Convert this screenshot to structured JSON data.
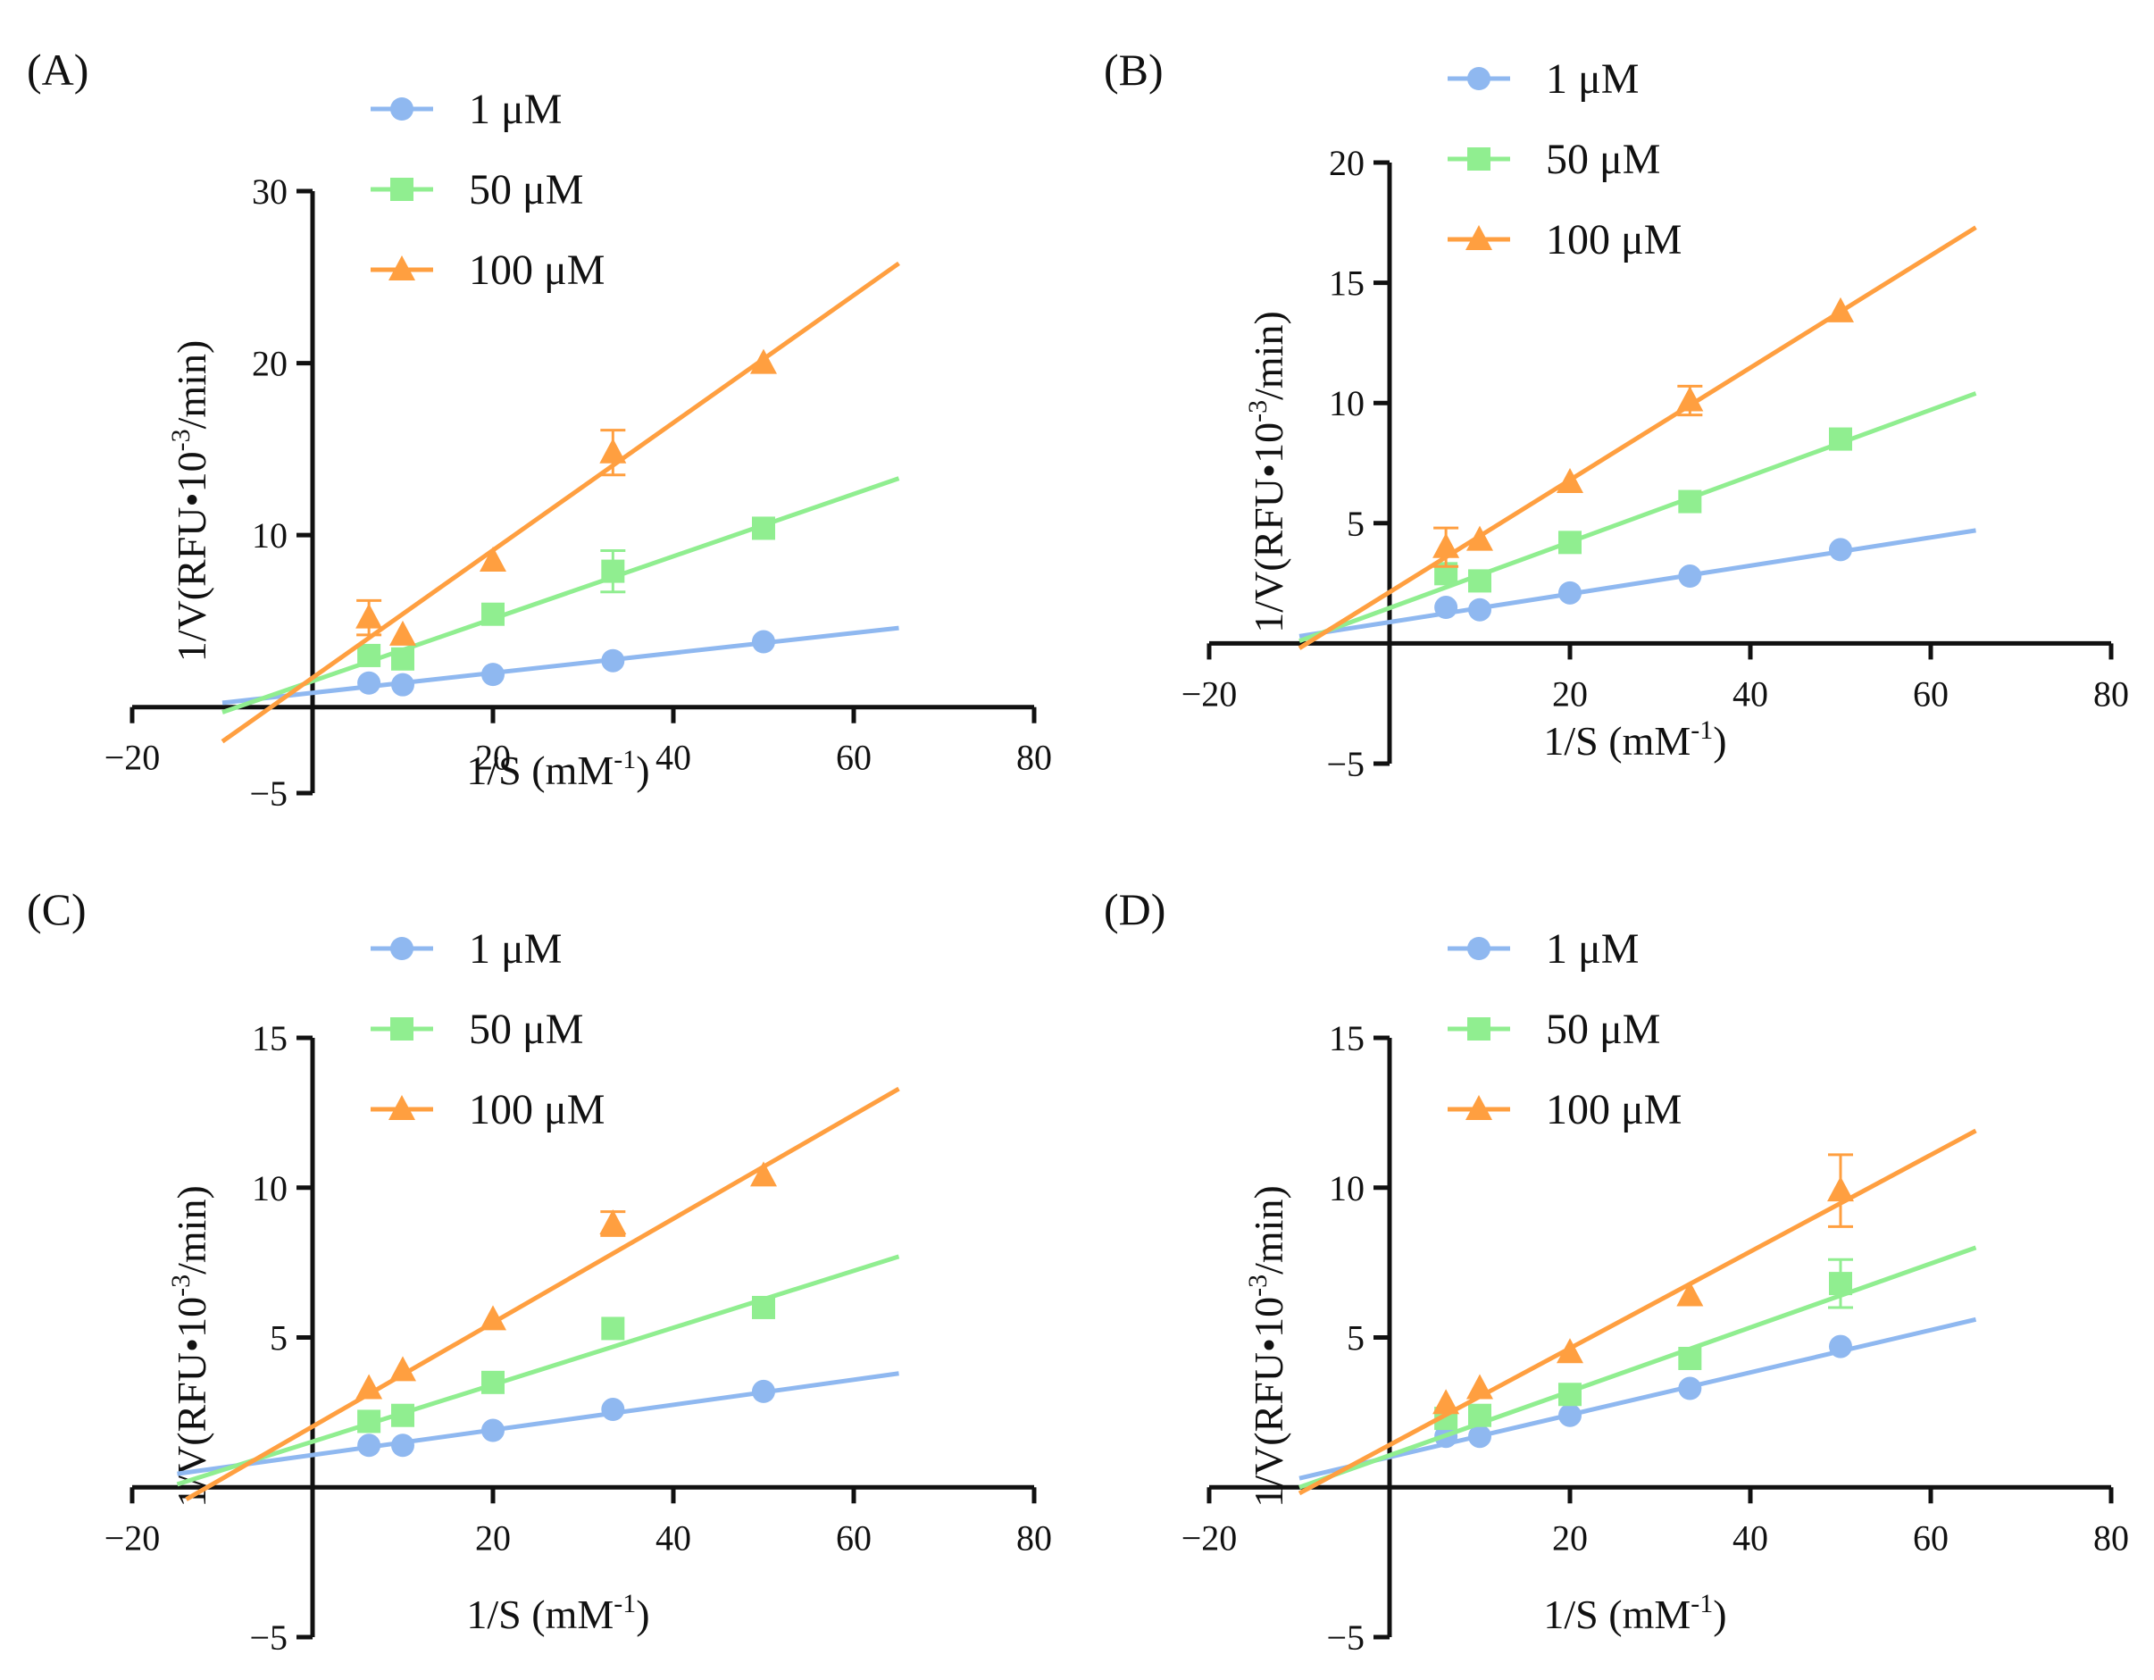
{
  "chart_data": [
    {
      "type": "line",
      "panel_label": "(A)",
      "xlabel": "1/S (mM",
      "xlabel_sup": "-1",
      "xlabel_end": ")",
      "ylabel": "1/V(RFU•10",
      "ylabel_sup": "-3",
      "ylabel_end": "/min)",
      "xlim": [
        -20,
        80
      ],
      "ylim": [
        -5,
        30
      ],
      "xticks": [
        -20,
        20,
        40,
        60,
        80
      ],
      "yticks": [
        -5,
        10,
        20,
        30
      ],
      "legend_position": "top-left",
      "series": [
        {
          "name": "1 μM",
          "color": "#8fb8f0",
          "marker": "circle",
          "points": [
            [
              6.25,
              1.4
            ],
            [
              10,
              1.3
            ],
            [
              20,
              1.9
            ],
            [
              33.3,
              2.7
            ],
            [
              50,
              3.8
            ]
          ],
          "errors": [
            0,
            0,
            0,
            0,
            0
          ],
          "fit": {
            "x": [
              -10,
              65
            ],
            "y": [
              0.25,
              4.6
            ]
          }
        },
        {
          "name": "50  μM",
          "color": "#90ee90",
          "marker": "square",
          "points": [
            [
              6.25,
              3.0
            ],
            [
              10,
              2.8
            ],
            [
              20,
              5.4
            ],
            [
              33.3,
              7.9
            ],
            [
              50,
              10.4
            ]
          ],
          "errors": [
            0,
            0,
            0,
            1.2,
            0
          ],
          "fit": {
            "x": [
              -10,
              65
            ],
            "y": [
              -0.3,
              13.3
            ]
          }
        },
        {
          "name": "100  μM",
          "color": "#ff9f40",
          "marker": "triangle",
          "points": [
            [
              6.25,
              5.2
            ],
            [
              10,
              4.2
            ],
            [
              20,
              8.5
            ],
            [
              33.3,
              14.8
            ],
            [
              50,
              20.0
            ]
          ],
          "errors": [
            1.0,
            0,
            0,
            1.3,
            0
          ],
          "fit": {
            "x": [
              -10,
              65
            ],
            "y": [
              -2.0,
              25.8
            ]
          }
        }
      ]
    },
    {
      "type": "line",
      "panel_label": "(B)",
      "xlabel": "1/S (mM",
      "xlabel_sup": "-1",
      "xlabel_end": ")",
      "ylabel": "1/V(RFU•10",
      "ylabel_sup": "-3",
      "ylabel_end": "/min)",
      "xlim": [
        -20,
        80
      ],
      "ylim": [
        -5,
        20
      ],
      "xticks": [
        -20,
        20,
        40,
        60,
        80
      ],
      "yticks": [
        -5,
        5,
        10,
        15,
        20
      ],
      "legend_position": "top-left",
      "series": [
        {
          "name": "1 μM",
          "color": "#8fb8f0",
          "marker": "circle",
          "points": [
            [
              6.25,
              1.5
            ],
            [
              10,
              1.4
            ],
            [
              20,
              2.1
            ],
            [
              33.3,
              2.8
            ],
            [
              50,
              3.9
            ]
          ],
          "errors": [
            0,
            0,
            0,
            0,
            0
          ],
          "fit": {
            "x": [
              -10,
              65
            ],
            "y": [
              0.3,
              4.7
            ]
          }
        },
        {
          "name": "50  μM",
          "color": "#90ee90",
          "marker": "square",
          "points": [
            [
              6.25,
              2.9
            ],
            [
              10,
              2.6
            ],
            [
              20,
              4.2
            ],
            [
              33.3,
              5.9
            ],
            [
              50,
              8.5
            ]
          ],
          "errors": [
            0,
            0,
            0,
            0,
            0
          ],
          "fit": {
            "x": [
              -10,
              65
            ],
            "y": [
              0.1,
              10.4
            ]
          }
        },
        {
          "name": "100  μM",
          "color": "#ff9f40",
          "marker": "triangle",
          "points": [
            [
              6.25,
              4.0
            ],
            [
              10,
              4.3
            ],
            [
              20,
              6.7
            ],
            [
              33.3,
              10.1
            ],
            [
              50,
              13.8
            ]
          ],
          "errors": [
            0.8,
            0,
            0,
            0.6,
            0
          ],
          "fit": {
            "x": [
              -10,
              65
            ],
            "y": [
              -0.2,
              17.3
            ]
          }
        }
      ]
    },
    {
      "type": "line",
      "panel_label": "(C)",
      "xlabel": "1/S (mM",
      "xlabel_sup": "-1",
      "xlabel_end": ")",
      "ylabel": "1/V(RFU•10",
      "ylabel_sup": "-3",
      "ylabel_end": "/min)",
      "xlim": [
        -20,
        80
      ],
      "ylim": [
        -5,
        15
      ],
      "xticks": [
        -20,
        20,
        40,
        60,
        80
      ],
      "yticks": [
        -5,
        5,
        10,
        15
      ],
      "legend_position": "top-left",
      "series": [
        {
          "name": "1 μM",
          "color": "#8fb8f0",
          "marker": "circle",
          "points": [
            [
              6.25,
              1.4
            ],
            [
              10,
              1.4
            ],
            [
              20,
              1.9
            ],
            [
              33.3,
              2.6
            ],
            [
              50,
              3.2
            ]
          ],
          "errors": [
            0,
            0,
            0,
            0,
            0
          ],
          "fit": {
            "x": [
              -15,
              65
            ],
            "y": [
              0.45,
              3.8
            ]
          }
        },
        {
          "name": "50  μM",
          "color": "#90ee90",
          "marker": "square",
          "points": [
            [
              6.25,
              2.2
            ],
            [
              10,
              2.4
            ],
            [
              20,
              3.5
            ],
            [
              33.3,
              5.3
            ],
            [
              50,
              6.0
            ]
          ],
          "errors": [
            0,
            0,
            0,
            0,
            0
          ],
          "fit": {
            "x": [
              -15,
              65
            ],
            "y": [
              0.1,
              7.7
            ]
          }
        },
        {
          "name": "100  μM",
          "color": "#ff9f40",
          "marker": "triangle",
          "points": [
            [
              6.25,
              3.3
            ],
            [
              10,
              3.9
            ],
            [
              20,
              5.6
            ],
            [
              33.3,
              8.8
            ],
            [
              50,
              10.4
            ]
          ],
          "errors": [
            0,
            0,
            0,
            0.4,
            0
          ],
          "fit": {
            "x": [
              -14,
              65
            ],
            "y": [
              -0.4,
              13.3
            ]
          }
        }
      ]
    },
    {
      "type": "line",
      "panel_label": "(D)",
      "xlabel": "1/S (mM",
      "xlabel_sup": "-1",
      "xlabel_end": ")",
      "ylabel": "1/V(RFU•10",
      "ylabel_sup": "-3",
      "ylabel_end": "/min)",
      "xlim": [
        -20,
        80
      ],
      "ylim": [
        -5,
        15
      ],
      "xticks": [
        -20,
        20,
        40,
        60,
        80
      ],
      "yticks": [
        -5,
        5,
        10,
        15
      ],
      "legend_position": "top-left",
      "series": [
        {
          "name": "1 μM",
          "color": "#8fb8f0",
          "marker": "circle",
          "points": [
            [
              6.25,
              1.7
            ],
            [
              10,
              1.7
            ],
            [
              20,
              2.4
            ],
            [
              33.3,
              3.3
            ],
            [
              50,
              4.7
            ]
          ],
          "errors": [
            0,
            0,
            0,
            0,
            0
          ],
          "fit": {
            "x": [
              -10,
              65
            ],
            "y": [
              0.3,
              5.6
            ]
          }
        },
        {
          "name": "50  μM",
          "color": "#90ee90",
          "marker": "square",
          "points": [
            [
              6.25,
              2.3
            ],
            [
              10,
              2.4
            ],
            [
              20,
              3.1
            ],
            [
              33.3,
              4.3
            ],
            [
              50,
              6.8
            ]
          ],
          "errors": [
            0,
            0,
            0,
            0,
            0.8
          ],
          "fit": {
            "x": [
              -10,
              65
            ],
            "y": [
              0.0,
              8.0
            ]
          }
        },
        {
          "name": "100  μM",
          "color": "#ff9f40",
          "marker": "triangle",
          "points": [
            [
              6.25,
              2.8
            ],
            [
              10,
              3.3
            ],
            [
              20,
              4.5
            ],
            [
              33.3,
              6.4
            ],
            [
              50,
              9.9
            ]
          ],
          "errors": [
            0,
            0,
            0,
            0,
            1.2
          ],
          "fit": {
            "x": [
              -10,
              65
            ],
            "y": [
              -0.2,
              11.9
            ]
          }
        }
      ]
    }
  ]
}
